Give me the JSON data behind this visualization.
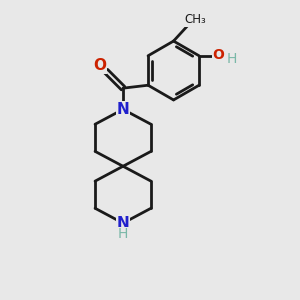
{
  "background_color": "#e8e8e8",
  "bond_color": "#1a1a1a",
  "N_color": "#2020cc",
  "O_color": "#cc2200",
  "OH_color": "#7ab8a8",
  "line_width": 2.0,
  "figsize": [
    3.0,
    3.0
  ],
  "dpi": 100,
  "xlim": [
    0,
    10
  ],
  "ylim": [
    0,
    10
  ]
}
